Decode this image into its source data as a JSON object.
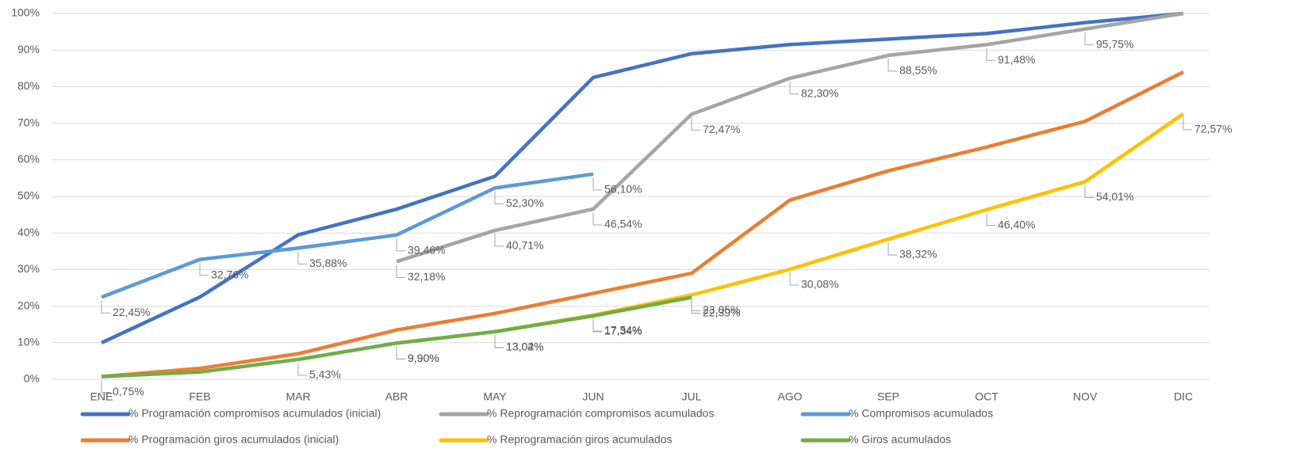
{
  "chart_data": {
    "type": "line",
    "categories": [
      "ENE",
      "FEB",
      "MAR",
      "ABR",
      "MAY",
      "JUN",
      "JUL",
      "AGO",
      "SEP",
      "OCT",
      "NOV",
      "DIC"
    ],
    "ylim": [
      0,
      100
    ],
    "yticks": [
      {
        "value": 0,
        "label": "0%"
      },
      {
        "value": 10,
        "label": "10%"
      },
      {
        "value": 20,
        "label": "20%"
      },
      {
        "value": 30,
        "label": "30%"
      },
      {
        "value": 40,
        "label": "40%"
      },
      {
        "value": 50,
        "label": "50%"
      },
      {
        "value": 60,
        "label": "60%"
      },
      {
        "value": 70,
        "label": "70%"
      },
      {
        "value": 80,
        "label": "80%"
      },
      {
        "value": 90,
        "label": "90%"
      },
      {
        "value": 100,
        "label": "100%"
      }
    ],
    "grid": true,
    "legend": "bottom",
    "series": [
      {
        "name": "% Programación compromisos acumulados (inicial)",
        "color": "#4472c4",
        "values": [
          10,
          22.5,
          39.5,
          46.5,
          55.5,
          82.5,
          89,
          91.5,
          93,
          94.5,
          97.5,
          100
        ]
      },
      {
        "name": "% Reprogramación compromisos acumulados",
        "color": "#a5a5a5",
        "values": [
          null,
          null,
          null,
          32.18,
          40.71,
          46.54,
          72.47,
          82.3,
          88.55,
          91.48,
          95.75,
          100
        ],
        "value_labels": [
          null,
          null,
          null,
          "32,18%",
          "40,71%",
          "46,54%",
          "72,47%",
          "82,30%",
          "88,55%",
          "91,48%",
          "95,75%",
          null
        ]
      },
      {
        "name": "% Compromisos acumulados",
        "color": "#5b9bd5",
        "values": [
          22.45,
          32.76,
          35.88,
          39.46,
          52.3,
          56.1,
          null,
          null,
          null,
          null,
          null,
          null
        ],
        "value_labels": [
          "22,45%",
          "32,76%",
          "35,88%",
          "39,46%",
          "52,30%",
          "56,10%",
          null,
          null,
          null,
          null,
          null,
          null
        ]
      },
      {
        "name": "% Programación giros acumulados (inicial)",
        "color": "#ed7d31",
        "values": [
          0.75,
          3,
          7,
          13.5,
          18,
          23.5,
          29,
          49,
          57,
          63.5,
          70.5,
          84
        ]
      },
      {
        "name": "% Reprogramación giros acumulados",
        "color": "#ffc000",
        "values": [
          null,
          null,
          null,
          9.9,
          13.04,
          17.54,
          23.05,
          30.08,
          38.32,
          46.4,
          54.01,
          72.57
        ],
        "value_labels": [
          null,
          null,
          null,
          "9,90%",
          "13,04%",
          "17,54%",
          "23,05%",
          "30,08%",
          "38,32%",
          "46,40%",
          "54,01%",
          "72,57%"
        ]
      },
      {
        "name": "% Giros acumulados",
        "color": "#70ad47",
        "values": [
          0.75,
          2,
          5.43,
          9.9,
          13.02,
          17.34,
          22.39,
          null,
          null,
          null,
          null,
          null
        ],
        "value_labels": [
          "0,75%",
          null,
          "5,43%",
          "9,90%",
          "13,02%",
          "17,34%",
          "22,39%",
          null,
          null,
          null,
          null,
          null
        ]
      }
    ]
  }
}
